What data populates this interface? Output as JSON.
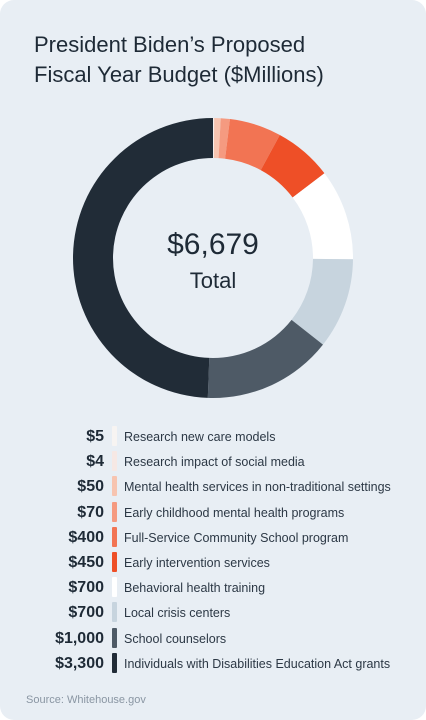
{
  "title_lines": [
    "President Biden’s Proposed",
    "Fiscal Year Budget ($Millions)"
  ],
  "center": {
    "total": "$6,679",
    "total_label": "Total"
  },
  "source": "Source: Whitehouse.gov",
  "chart_data": {
    "type": "pie",
    "title": "President Biden’s Proposed Fiscal Year Budget ($Millions)",
    "donut": true,
    "total": 6679,
    "slices": [
      {
        "label": "Research new care models",
        "value": 5,
        "display": "$5",
        "color": "#f7f4f2"
      },
      {
        "label": "Research impact of social media",
        "value": 4,
        "display": "$4",
        "color": "#f6e8e4"
      },
      {
        "label": "Mental health services in non-traditional settings",
        "value": 50,
        "display": "$50",
        "color": "#f7c4b0"
      },
      {
        "label": "Early childhood mental health programs",
        "value": 70,
        "display": "$70",
        "color": "#f59a80"
      },
      {
        "label": "Full-Service Community School program",
        "value": 400,
        "display": "$400",
        "color": "#f27453"
      },
      {
        "label": "Early intervention services",
        "value": 450,
        "display": "$450",
        "color": "#ee4f27"
      },
      {
        "label": "Behavioral health training",
        "value": 700,
        "display": "$700",
        "color": "#ffffff"
      },
      {
        "label": "Local crisis centers",
        "value": 700,
        "display": "$700",
        "color": "#c7d4de"
      },
      {
        "label": "School counselors",
        "value": 1000,
        "display": "$1,000",
        "color": "#4e5a66"
      },
      {
        "label": "Individuals with Disabilities Education Act grants",
        "value": 3300,
        "display": "$3,300",
        "color": "#212c37"
      }
    ]
  }
}
